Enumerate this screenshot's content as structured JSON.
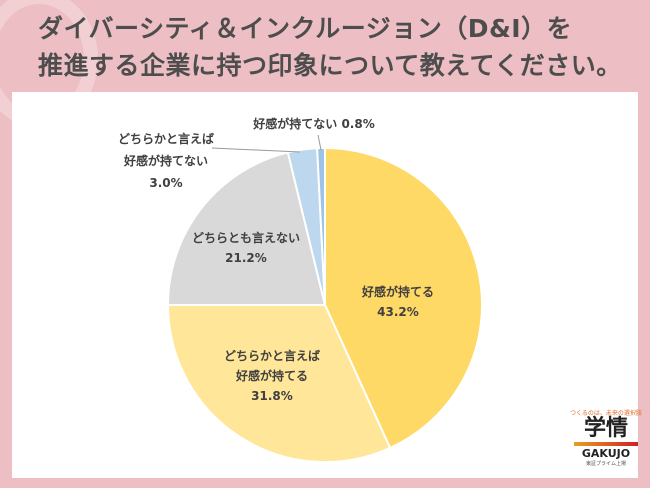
{
  "title_line1": "ダイバーシティ＆インクルージョン（D&I）を",
  "title_line2": "推進する企業に持つ印象について教えてください。",
  "chart_data": {
    "type": "pie",
    "start": "top",
    "direction": "clockwise",
    "slices": [
      {
        "label": "好感が持てる",
        "value": 43.2,
        "value_label": "43.2%",
        "color": "#FFD966"
      },
      {
        "label": "どちらかと言えば好感が持てる",
        "value": 31.8,
        "value_label": "31.8%",
        "color": "#FFE699"
      },
      {
        "label": "どちらとも言えない",
        "value": 21.2,
        "value_label": "21.2%",
        "color": "#D9D9D9"
      },
      {
        "label": "どちらかと言えば好感が持てない",
        "value": 3.0,
        "value_label": "3.0%",
        "color": "#BDD7EE"
      },
      {
        "label": "好感が持てない",
        "value": 0.8,
        "value_label": "0.8%",
        "color": "#9DC3E6"
      }
    ]
  },
  "labels": {
    "s0": [
      "好感が持てる",
      "43.2%"
    ],
    "s1": [
      "どちらかと言えば",
      "好感が持てる",
      "31.8%"
    ],
    "s2": [
      "どちらとも言えない",
      "21.2%"
    ],
    "s3": [
      "どちらかと言えば",
      "好感が持てない",
      "3.0%"
    ],
    "s4": [
      "好感が持てない 0.8%"
    ]
  },
  "logo": {
    "tagline": "つくるのは、未来の選択肢",
    "kanji": "学情",
    "name": "GAKUJO",
    "sub": "東証プライム上場"
  }
}
